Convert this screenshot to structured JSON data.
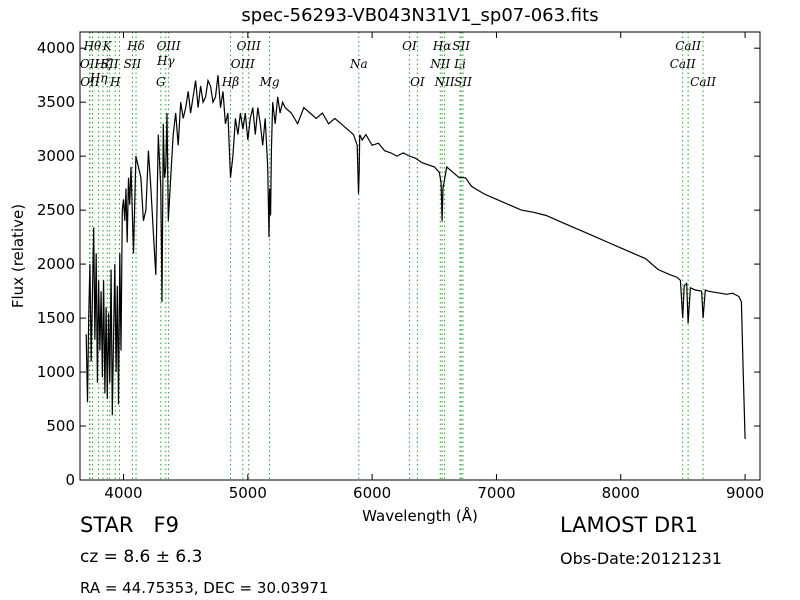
{
  "title": "spec-56293-VB043N31V1_sp07-063.fits",
  "info": {
    "class_label": "STAR",
    "subclass": "F9",
    "cz": "cz = 8.6 ± 6.3",
    "radec": "RA = 44.75353, DEC = 30.03971",
    "survey": "LAMOST DR1",
    "obs_date": "Obs-Date:20121231"
  },
  "colors": {
    "spectrum": "#000000",
    "line_marker": "#2ca02c"
  },
  "chart_data": {
    "type": "line",
    "xlabel": "Wavelength (Å)",
    "ylabel": "Flux (relative)",
    "xlim": [
      3650,
      9120
    ],
    "ylim": [
      0,
      4150
    ],
    "xticks": [
      4000,
      5000,
      6000,
      7000,
      8000,
      9000
    ],
    "yticks": [
      0,
      500,
      1000,
      1500,
      2000,
      2500,
      3000,
      3500,
      4000
    ],
    "grid": false,
    "legend": "none",
    "series": [
      {
        "x": [
          3700,
          3710,
          3720,
          3730,
          3740,
          3750,
          3760,
          3770,
          3780,
          3790,
          3800,
          3810,
          3820,
          3830,
          3840,
          3850,
          3860,
          3870,
          3880,
          3890,
          3900,
          3910,
          3920,
          3930,
          3940,
          3950,
          3960,
          3970,
          3980,
          3990,
          4000,
          4010,
          4020,
          4030,
          4040,
          4050,
          4060,
          4080,
          4100,
          4120,
          4140,
          4160,
          4180,
          4200,
          4220,
          4240,
          4260,
          4280,
          4300,
          4310,
          4320,
          4330,
          4340,
          4350,
          4360,
          4380,
          4400,
          4420,
          4440,
          4460,
          4480,
          4500,
          4520,
          4540,
          4560,
          4580,
          4600,
          4620,
          4640,
          4660,
          4680,
          4700,
          4720,
          4740,
          4760,
          4780,
          4800,
          4820,
          4840,
          4861,
          4880,
          4900,
          4920,
          4940,
          4960,
          4980,
          5000,
          5020,
          5040,
          5060,
          5080,
          5100,
          5120,
          5140,
          5160,
          5170,
          5175,
          5183,
          5190,
          5200,
          5220,
          5240,
          5260,
          5280,
          5300,
          5350,
          5400,
          5450,
          5500,
          5550,
          5600,
          5650,
          5700,
          5750,
          5800,
          5850,
          5880,
          5890,
          5896,
          5900,
          5920,
          5950,
          6000,
          6050,
          6100,
          6150,
          6200,
          6250,
          6300,
          6350,
          6400,
          6450,
          6500,
          6540,
          6555,
          6563,
          6570,
          6600,
          6650,
          6700,
          6750,
          6800,
          6900,
          7000,
          7100,
          7200,
          7300,
          7400,
          7500,
          7600,
          7700,
          7800,
          7900,
          8000,
          8100,
          8200,
          8300,
          8400,
          8450,
          8480,
          8498,
          8510,
          8530,
          8542,
          8560,
          8600,
          8650,
          8662,
          8680,
          8700,
          8750,
          8800,
          8850,
          8900,
          8950,
          8970,
          8985,
          9000
        ],
        "y": [
          1350,
          720,
          1500,
          2000,
          1100,
          1700,
          2340,
          1300,
          2100,
          900,
          1850,
          1200,
          1750,
          950,
          1850,
          800,
          1600,
          750,
          1550,
          900,
          1950,
          600,
          1350,
          2000,
          1000,
          1800,
          700,
          2100,
          1200,
          2500,
          2600,
          2400,
          2700,
          2200,
          2800,
          2550,
          2900,
          2100,
          3000,
          2900,
          2800,
          2400,
          2500,
          3050,
          2700,
          2300,
          1900,
          3200,
          2700,
          1650,
          3300,
          2800,
          2900,
          3400,
          2400,
          2800,
          3200,
          3400,
          3100,
          3500,
          3350,
          3450,
          3600,
          3400,
          3550,
          3700,
          3450,
          3650,
          3500,
          3550,
          3700,
          3650,
          3500,
          3550,
          3750,
          3450,
          3600,
          3300,
          3400,
          2800,
          3000,
          3350,
          3200,
          3400,
          3250,
          3400,
          3150,
          3350,
          3450,
          3200,
          3450,
          3300,
          3100,
          3350,
          2900,
          2250,
          2700,
          2450,
          3050,
          3500,
          3300,
          3550,
          3400,
          3500,
          3450,
          3400,
          3300,
          3450,
          3400,
          3350,
          3400,
          3300,
          3350,
          3300,
          3250,
          3200,
          3100,
          2650,
          2850,
          3200,
          3150,
          3200,
          3100,
          3120,
          3050,
          3030,
          3000,
          3030,
          3000,
          2980,
          2940,
          2920,
          2900,
          2850,
          2750,
          2400,
          2700,
          2900,
          2850,
          2800,
          2800,
          2720,
          2650,
          2600,
          2550,
          2500,
          2480,
          2450,
          2400,
          2350,
          2300,
          2250,
          2200,
          2150,
          2100,
          2050,
          1950,
          1900,
          1880,
          1850,
          1500,
          1800,
          1820,
          1450,
          1780,
          1760,
          1750,
          1500,
          1760,
          1750,
          1740,
          1730,
          1720,
          1730,
          1700,
          1650,
          1000,
          380
        ]
      }
    ],
    "line_markers": [
      {
        "x": 3727,
        "label": "OII",
        "row": 2
      },
      {
        "x": 3730,
        "label": "OII",
        "row": 3
      },
      {
        "x": 3750,
        "label": "Hθ",
        "row": 1
      },
      {
        "x": 3800,
        "label": "Hη",
        "row": 3.4
      },
      {
        "x": 3835,
        "label": "Hζ",
        "row": 2
      },
      {
        "x": 3869,
        "label": "K",
        "row": 1
      },
      {
        "x": 3889,
        "label": "SII",
        "row": 2
      },
      {
        "x": 3933,
        "label": "H",
        "row": 3
      },
      {
        "x": 3968,
        "label": "",
        "row": 0
      },
      {
        "x": 4072,
        "label": "SII",
        "row": 2
      },
      {
        "x": 4101,
        "label": "Hδ",
        "row": 1
      },
      {
        "x": 4300,
        "label": "G",
        "row": 3
      },
      {
        "x": 4340,
        "label": "Hγ",
        "row": 2.2
      },
      {
        "x": 4363,
        "label": "OIII",
        "row": 1
      },
      {
        "x": 4861,
        "label": "Hβ",
        "row": 3
      },
      {
        "x": 4959,
        "label": "OIII",
        "row": 2
      },
      {
        "x": 5007,
        "label": "OIII",
        "row": 1
      },
      {
        "x": 5175,
        "label": "Mg",
        "row": 3
      },
      {
        "x": 5893,
        "label": "Na",
        "row": 2
      },
      {
        "x": 6300,
        "label": "OI",
        "row": 1
      },
      {
        "x": 6364,
        "label": "OI",
        "row": 3
      },
      {
        "x": 6548,
        "label": "NII",
        "row": 2
      },
      {
        "x": 6563,
        "label": "Hα",
        "row": 1
      },
      {
        "x": 6583,
        "label": "NII",
        "row": 3
      },
      {
        "x": 6707,
        "label": "Li",
        "row": 2
      },
      {
        "x": 6716,
        "label": "SII",
        "row": 1
      },
      {
        "x": 6731,
        "label": "SII",
        "row": 3
      },
      {
        "x": 8498,
        "label": "CaII",
        "row": 2
      },
      {
        "x": 8542,
        "label": "CaII",
        "row": 1
      },
      {
        "x": 8662,
        "label": "CaII",
        "row": 3
      }
    ]
  }
}
